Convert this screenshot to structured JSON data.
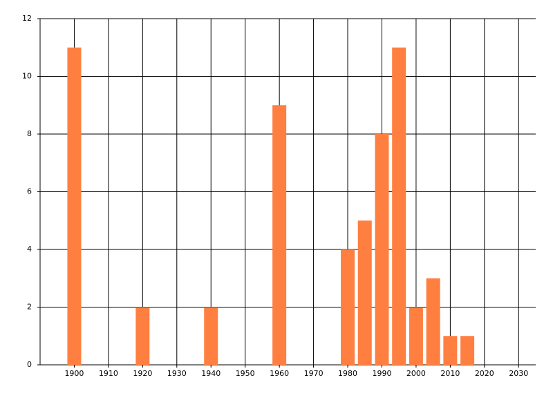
{
  "chart_data": {
    "type": "bar",
    "x": [
      1900,
      1920,
      1940,
      1960,
      1980,
      1985,
      1990,
      1995,
      2000,
      2005,
      2010,
      2015
    ],
    "values": [
      11,
      2,
      2,
      9,
      4,
      5,
      8,
      11,
      2,
      3,
      1,
      1
    ],
    "color": "#ff7f41",
    "xlim": [
      1890,
      2035
    ],
    "xticks": [
      1900,
      1910,
      1920,
      1930,
      1940,
      1950,
      1960,
      1970,
      1980,
      1990,
      2000,
      2010,
      2020,
      2030
    ],
    "ylim": [
      0,
      12
    ],
    "yticks": [
      0,
      2,
      4,
      6,
      8,
      10,
      12
    ],
    "grid": true
  }
}
